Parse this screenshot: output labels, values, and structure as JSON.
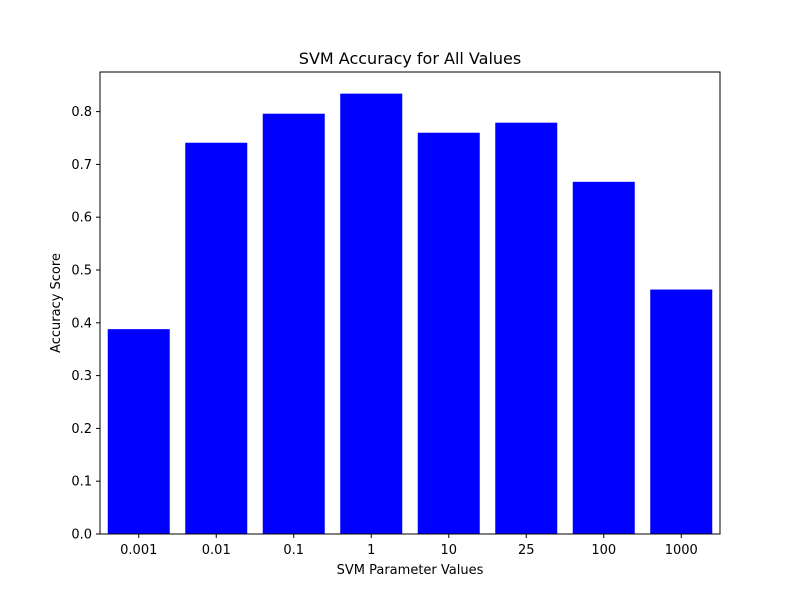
{
  "chart_data": {
    "type": "bar",
    "title": "SVM Accuracy for All Values",
    "xlabel": "SVM Parameter Values",
    "ylabel": "Accuracy Score",
    "categories": [
      "0.001",
      "0.01",
      "0.1",
      "1",
      "10",
      "25",
      "100",
      "1000"
    ],
    "values": [
      0.388,
      0.741,
      0.796,
      0.834,
      0.76,
      0.779,
      0.667,
      0.463
    ],
    "ylim": [
      0,
      0.875
    ],
    "yticks": [
      "0.0",
      "0.1",
      "0.2",
      "0.3",
      "0.4",
      "0.5",
      "0.6",
      "0.7",
      "0.8"
    ],
    "bar_color": "#0000ff",
    "grid": false
  }
}
